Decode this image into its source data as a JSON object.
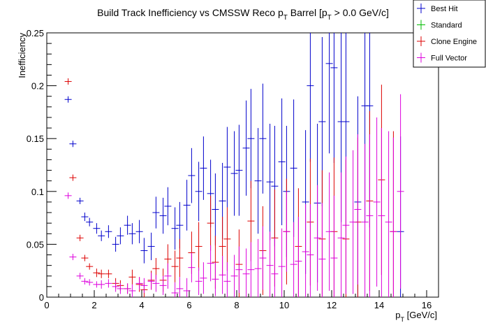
{
  "chart_data": {
    "type": "scatter",
    "title": {
      "main": "Build Track Inefficiency vs CMSSW Reco p",
      "sub1": "T",
      "mid": " Barrel [p",
      "sub2": "T",
      "tail": " > 0.0 GeV/c]"
    },
    "xlabel": {
      "main": "p",
      "sub": "T",
      "tail": " [GeV/c]"
    },
    "ylabel": "Inefficiency",
    "xlim": [
      0,
      16.5
    ],
    "ylim": [
      0,
      0.25
    ],
    "x_ticks": [
      0,
      2,
      4,
      6,
      8,
      10,
      12,
      14,
      16
    ],
    "x_tick_labels": [
      "0",
      "2",
      "4",
      "6",
      "8",
      "10",
      "12",
      "14",
      "16"
    ],
    "y_ticks": [
      0,
      0.05,
      0.1,
      0.15,
      0.2,
      0.25
    ],
    "y_tick_labels": [
      "0",
      "0.05",
      "0.1",
      "0.15",
      "0.2",
      "0.25"
    ],
    "legend_position": "top-right",
    "series": [
      {
        "name": "Best Hit",
        "color": "#0000cc",
        "points": [
          [
            0.9,
            0.187,
            0.003
          ],
          [
            1.1,
            0.145,
            0.003
          ],
          [
            1.4,
            0.091,
            0.003
          ],
          [
            1.6,
            0.076,
            0.004
          ],
          [
            1.8,
            0.071,
            0.004
          ],
          [
            2.1,
            0.065,
            0.005
          ],
          [
            2.3,
            0.058,
            0.005
          ],
          [
            2.6,
            0.062,
            0.006
          ],
          [
            2.9,
            0.05,
            0.007
          ],
          [
            3.1,
            0.058,
            0.008
          ],
          [
            3.4,
            0.068,
            0.009
          ],
          [
            3.6,
            0.06,
            0.01
          ],
          [
            3.9,
            0.062,
            0.011
          ],
          [
            4.1,
            0.044,
            0.012
          ],
          [
            4.4,
            0.048,
            0.013
          ],
          [
            4.6,
            0.08,
            0.015
          ],
          [
            4.9,
            0.077,
            0.017
          ],
          [
            5.1,
            0.086,
            0.018
          ],
          [
            5.4,
            0.065,
            0.02
          ],
          [
            5.6,
            0.068,
            0.022
          ],
          [
            5.9,
            0.087,
            0.024
          ],
          [
            6.1,
            0.115,
            0.026
          ],
          [
            6.4,
            0.1,
            0.028
          ],
          [
            6.6,
            0.122,
            0.03
          ],
          [
            6.9,
            0.098,
            0.032
          ],
          [
            7.1,
            0.083,
            0.034
          ],
          [
            7.4,
            0.091,
            0.036
          ],
          [
            7.6,
            0.123,
            0.038
          ],
          [
            7.9,
            0.117,
            0.04
          ],
          [
            8.1,
            0.12,
            0.043
          ],
          [
            8.4,
            0.141,
            0.045
          ],
          [
            8.6,
            0.15,
            0.047
          ],
          [
            8.9,
            0.11,
            0.05
          ],
          [
            9.1,
            0.15,
            0.052
          ],
          [
            9.4,
            0.109,
            0.055
          ],
          [
            9.6,
            0.105,
            0.057
          ],
          [
            9.9,
            0.128,
            0.06
          ],
          [
            10.1,
            0.1,
            0.062
          ],
          [
            10.4,
            0.122,
            0.065
          ],
          [
            10.9,
            0.09,
            0.068
          ],
          [
            11.1,
            0.2,
            0.072
          ],
          [
            11.4,
            0.089,
            0.075
          ],
          [
            11.6,
            0.166,
            0.08
          ],
          [
            11.9,
            0.221,
            0.085
          ],
          [
            12.1,
            0.217,
            0.09
          ],
          [
            12.4,
            0.166,
            0.095
          ],
          [
            12.6,
            0.166,
            0.1
          ],
          [
            13.1,
            0.09,
            0.1
          ],
          [
            13.4,
            0.181,
            0.11
          ],
          [
            13.6,
            0.181,
            0.115
          ],
          [
            14.9,
            0.062,
            0.09
          ]
        ]
      },
      {
        "name": "Standard",
        "color": "#00bb00",
        "points": []
      },
      {
        "name": "Clone Engine",
        "color": "#dd0000",
        "points": [
          [
            0.9,
            0.204,
            0.003
          ],
          [
            1.1,
            0.113,
            0.003
          ],
          [
            1.4,
            0.056,
            0.003
          ],
          [
            1.6,
            0.037,
            0.003
          ],
          [
            1.8,
            0.029,
            0.003
          ],
          [
            2.1,
            0.023,
            0.004
          ],
          [
            2.3,
            0.022,
            0.004
          ],
          [
            2.6,
            0.022,
            0.004
          ],
          [
            2.9,
            0.013,
            0.005
          ],
          [
            3.1,
            0.011,
            0.005
          ],
          [
            3.4,
            0.008,
            0.005
          ],
          [
            3.6,
            0.019,
            0.007
          ],
          [
            3.9,
            0.012,
            0.007
          ],
          [
            4.1,
            0.007,
            0.007
          ],
          [
            4.4,
            0.016,
            0.009
          ],
          [
            4.6,
            0.027,
            0.01
          ],
          [
            4.9,
            0.016,
            0.011
          ],
          [
            5.1,
            0.036,
            0.014
          ],
          [
            5.4,
            0.029,
            0.015
          ],
          [
            5.6,
            0.037,
            0.018
          ],
          [
            6.1,
            0.042,
            0.02
          ],
          [
            6.4,
            0.048,
            0.023
          ],
          [
            6.9,
            0.07,
            0.026
          ],
          [
            7.1,
            0.033,
            0.025
          ],
          [
            7.4,
            0.048,
            0.028
          ],
          [
            7.6,
            0.055,
            0.03
          ],
          [
            8.1,
            0.031,
            0.033
          ],
          [
            8.6,
            0.072,
            0.038
          ],
          [
            9.1,
            0.044,
            0.042
          ],
          [
            9.6,
            0.056,
            0.046
          ],
          [
            10.1,
            0.062,
            0.05
          ],
          [
            10.6,
            0.048,
            0.055
          ],
          [
            11.1,
            0.071,
            0.06
          ],
          [
            11.6,
            0.055,
            0.065
          ],
          [
            12.1,
            0.062,
            0.07
          ],
          [
            12.6,
            0.055,
            0.075
          ],
          [
            13.1,
            0.071,
            0.08
          ],
          [
            13.6,
            0.091,
            0.085
          ],
          [
            14.1,
            0.111,
            0.09
          ],
          [
            14.6,
            0.062,
            0.095
          ]
        ]
      },
      {
        "name": "Full Vector",
        "color": "#dd00dd",
        "points": [
          [
            0.9,
            0.096,
            0.003
          ],
          [
            1.1,
            0.038,
            0.003
          ],
          [
            1.4,
            0.02,
            0.003
          ],
          [
            1.6,
            0.015,
            0.003
          ],
          [
            1.8,
            0.014,
            0.003
          ],
          [
            2.1,
            0.012,
            0.003
          ],
          [
            2.3,
            0.012,
            0.004
          ],
          [
            2.6,
            0.013,
            0.004
          ],
          [
            2.9,
            0.01,
            0.005
          ],
          [
            3.1,
            0.008,
            0.005
          ],
          [
            3.4,
            0.008,
            0.005
          ],
          [
            3.6,
            0.006,
            0.006
          ],
          [
            3.9,
            0.013,
            0.006
          ],
          [
            4.1,
            0.011,
            0.007
          ],
          [
            4.4,
            0.015,
            0.008
          ],
          [
            4.6,
            0.013,
            0.008
          ],
          [
            4.9,
            0.011,
            0.009
          ],
          [
            5.1,
            0.02,
            0.012
          ],
          [
            5.4,
            0.004,
            0.01
          ],
          [
            5.6,
            0.008,
            0.011
          ],
          [
            5.9,
            0.006,
            0.012
          ],
          [
            6.1,
            0.028,
            0.014
          ],
          [
            6.4,
            0.015,
            0.013
          ],
          [
            6.6,
            0.018,
            0.015
          ],
          [
            6.9,
            0.032,
            0.017
          ],
          [
            7.1,
            0.017,
            0.016
          ],
          [
            7.4,
            0.021,
            0.018
          ],
          [
            7.6,
            0.015,
            0.018
          ],
          [
            7.9,
            0.02,
            0.02
          ],
          [
            8.1,
            0.026,
            0.022
          ],
          [
            8.4,
            0.022,
            0.024
          ],
          [
            8.6,
            0.026,
            0.026
          ],
          [
            8.9,
            0.027,
            0.028
          ],
          [
            9.1,
            0.037,
            0.03
          ],
          [
            9.4,
            0.03,
            0.032
          ],
          [
            9.6,
            0.022,
            0.034
          ],
          [
            9.9,
            0.029,
            0.036
          ],
          [
            10.1,
            0.062,
            0.038
          ],
          [
            10.4,
            0.031,
            0.04
          ],
          [
            10.6,
            0.034,
            0.042
          ],
          [
            10.9,
            0.043,
            0.045
          ],
          [
            11.1,
            0.04,
            0.048
          ],
          [
            11.4,
            0.056,
            0.05
          ],
          [
            11.6,
            0.036,
            0.053
          ],
          [
            11.9,
            0.062,
            0.056
          ],
          [
            12.1,
            0.037,
            0.059
          ],
          [
            12.4,
            0.056,
            0.062
          ],
          [
            12.6,
            0.068,
            0.065
          ],
          [
            12.9,
            0.071,
            0.068
          ],
          [
            13.1,
            0.083,
            0.071
          ],
          [
            13.4,
            0.071,
            0.074
          ],
          [
            13.6,
            0.077,
            0.077
          ],
          [
            13.9,
            0.09,
            0.08
          ],
          [
            14.1,
            0.077,
            0.083
          ],
          [
            14.4,
            0.071,
            0.086
          ],
          [
            14.6,
            0.062,
            0.089
          ],
          [
            14.9,
            0.1,
            0.092
          ]
        ]
      }
    ]
  }
}
